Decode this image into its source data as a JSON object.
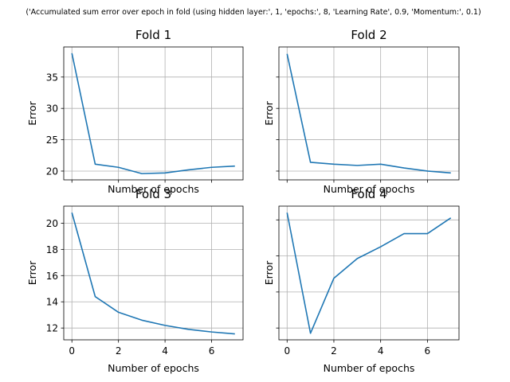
{
  "suptitle": "('Accumulated sum error over epoch in fold (using hidden layer:', 1, 'epochs:', 8, 'Learning Rate', 0.9, 'Momentum:', 0.1)",
  "chart_data": [
    {
      "type": "line",
      "title": "Fold 1",
      "xlabel": "Number of epochs",
      "ylabel": "Error",
      "x": [
        0,
        1,
        2,
        3,
        4,
        5,
        6,
        7
      ],
      "series": [
        {
          "values": [
            38.8,
            21.1,
            20.6,
            19.6,
            19.7,
            20.2,
            20.6,
            20.8
          ]
        }
      ],
      "xlim": [
        -0.35,
        7.35
      ],
      "ylim": [
        18.6,
        39.8
      ],
      "xticks": [
        0,
        2,
        4,
        6
      ],
      "xtick_labels_shown": false,
      "yticks": [
        20,
        25,
        30,
        35
      ],
      "ytick_labels": [
        "20",
        "25",
        "30",
        "35"
      ],
      "grid": true
    },
    {
      "type": "line",
      "title": "Fold 2",
      "xlabel": "Number of epochs",
      "ylabel": "Error",
      "x": [
        0,
        1,
        2,
        3,
        4,
        5,
        6,
        7
      ],
      "series": [
        {
          "values": [
            38.7,
            21.4,
            21.1,
            20.9,
            21.1,
            20.5,
            20.0,
            19.7
          ]
        }
      ],
      "xlim": [
        -0.35,
        7.35
      ],
      "ylim": [
        18.6,
        39.8
      ],
      "xticks": [
        0,
        2,
        4,
        6
      ],
      "xtick_labels_shown": false,
      "yticks": [
        20,
        25,
        30,
        35
      ],
      "ytick_labels_shown": false,
      "grid": true
    },
    {
      "type": "line",
      "title": "Fold 3",
      "xlabel": "Number of epochs",
      "ylabel": "Error",
      "x": [
        0,
        1,
        2,
        3,
        4,
        5,
        6,
        7
      ],
      "series": [
        {
          "values": [
            20.8,
            14.4,
            13.2,
            12.6,
            12.2,
            11.9,
            11.7,
            11.55
          ]
        }
      ],
      "xlim": [
        -0.35,
        7.35
      ],
      "ylim": [
        11.1,
        21.3
      ],
      "xticks": [
        0,
        2,
        4,
        6
      ],
      "xtick_labels": [
        "0",
        "2",
        "4",
        "6"
      ],
      "yticks": [
        12,
        14,
        16,
        18,
        20
      ],
      "ytick_labels": [
        "12",
        "14",
        "16",
        "18",
        "20"
      ],
      "grid": true
    },
    {
      "type": "line",
      "title": "Fold 4",
      "xlabel": "Number of epochs",
      "ylabel": "Error",
      "x": [
        0,
        1,
        2,
        3,
        4,
        5,
        6,
        7
      ],
      "series": [
        {
          "values": [
            20.8,
            11.6,
            15.8,
            17.3,
            18.2,
            19.2,
            19.2,
            20.4
          ]
        }
      ],
      "xlim": [
        -0.35,
        7.35
      ],
      "ylim": [
        11.1,
        21.3
      ],
      "xticks": [
        0,
        2,
        4,
        6
      ],
      "xtick_labels": [
        "0",
        "2",
        "4",
        "6"
      ],
      "yticks": [
        12,
        14.75,
        17.5,
        20.25
      ],
      "ytick_labels_shown": false,
      "grid": true
    }
  ]
}
